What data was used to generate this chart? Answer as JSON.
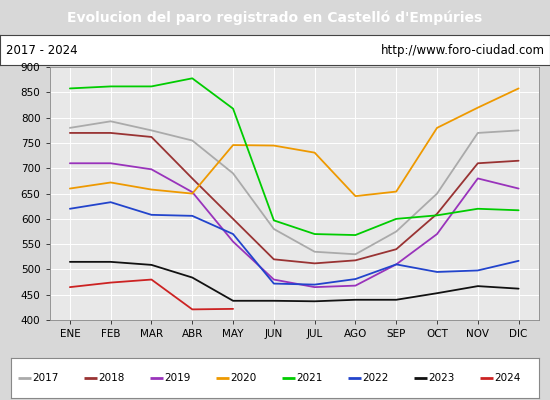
{
  "title": "Evolucion del paro registrado en Castelló d'Empúries",
  "subtitle_left": "2017 - 2024",
  "subtitle_right": "http://www.foro-ciudad.com",
  "ylim": [
    400,
    900
  ],
  "yticks": [
    400,
    450,
    500,
    550,
    600,
    650,
    700,
    750,
    800,
    850,
    900
  ],
  "months": [
    "ENE",
    "FEB",
    "MAR",
    "ABR",
    "MAY",
    "JUN",
    "JUL",
    "AGO",
    "SEP",
    "OCT",
    "NOV",
    "DIC"
  ],
  "background_color": "#d8d8d8",
  "plot_bg_color": "#e8e8e8",
  "title_bg_color": "#5599dd",
  "subtitle_bg_color": "#ffffff",
  "legend_bg_color": "#ffffff",
  "series": {
    "2017": {
      "color": "#aaaaaa",
      "data": [
        780,
        793,
        775,
        755,
        690,
        580,
        535,
        530,
        575,
        650,
        770,
        775
      ]
    },
    "2018": {
      "color": "#993333",
      "data": [
        770,
        770,
        762,
        680,
        600,
        520,
        512,
        518,
        540,
        610,
        710,
        715
      ]
    },
    "2019": {
      "color": "#9933bb",
      "data": [
        710,
        710,
        698,
        653,
        555,
        480,
        465,
        468,
        510,
        570,
        680,
        660
      ]
    },
    "2020": {
      "color": "#ee9900",
      "data": [
        660,
        672,
        658,
        650,
        746,
        745,
        731,
        645,
        654,
        780,
        820,
        858
      ]
    },
    "2021": {
      "color": "#00cc00",
      "data": [
        858,
        862,
        862,
        878,
        818,
        597,
        570,
        568,
        600,
        607,
        620,
        617
      ]
    },
    "2022": {
      "color": "#2244cc",
      "data": [
        620,
        633,
        608,
        606,
        570,
        472,
        470,
        481,
        510,
        495,
        498,
        517
      ]
    },
    "2023": {
      "color": "#111111",
      "data": [
        515,
        515,
        509,
        484,
        438,
        438,
        437,
        440,
        440,
        453,
        467,
        462
      ]
    },
    "2024": {
      "color": "#cc2222",
      "data": [
        465,
        474,
        480,
        421,
        422,
        null,
        null,
        null,
        null,
        null,
        null,
        null
      ]
    }
  }
}
